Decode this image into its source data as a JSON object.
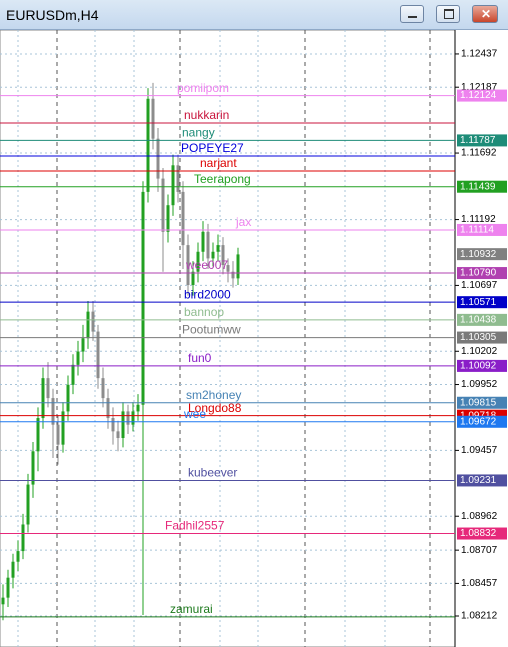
{
  "window": {
    "title": "EURUSDm,H4"
  },
  "chart_data": {
    "type": "candlestick",
    "ylim": [
      1.07979,
      1.12617
    ],
    "yticks": [
      1.12437,
      1.12187,
      1.11692,
      1.11192,
      1.10697,
      1.10202,
      1.09952,
      1.09457,
      1.08962,
      1.08707,
      1.08457,
      1.08212
    ],
    "grid": true,
    "up_color": "#22a022",
    "down_color": "#8c8c8c",
    "candles": [
      [
        1.083,
        1.0845,
        1.0818,
        1.0835
      ],
      [
        1.0835,
        1.0856,
        1.0828,
        1.085
      ],
      [
        1.085,
        1.0868,
        1.0842,
        1.0862
      ],
      [
        1.0862,
        1.0878,
        1.0855,
        1.087
      ],
      [
        1.087,
        1.0898,
        1.0864,
        1.089
      ],
      [
        1.089,
        1.0928,
        1.0884,
        1.092
      ],
      [
        1.092,
        1.0952,
        1.091,
        1.0945
      ],
      [
        1.0945,
        1.0978,
        1.093,
        1.097
      ],
      [
        1.097,
        1.1008,
        1.0962,
        1.1
      ],
      [
        1.1,
        1.1012,
        1.0978,
        1.0985
      ],
      [
        1.0985,
        1.0992,
        1.094,
        1.0965
      ],
      [
        1.0965,
        1.0972,
        1.0935,
        1.095
      ],
      [
        1.095,
        1.0982,
        1.0944,
        1.0975
      ],
      [
        1.0975,
        1.1002,
        1.0968,
        1.0995
      ],
      [
        1.0995,
        1.1018,
        1.0988,
        1.101
      ],
      [
        1.101,
        1.1028,
        1.1002,
        1.102
      ],
      [
        1.102,
        1.104,
        1.1012,
        1.103
      ],
      [
        1.103,
        1.1058,
        1.1022,
        1.105
      ],
      [
        1.105,
        1.1058,
        1.1028,
        1.1035
      ],
      [
        1.1035,
        1.104,
        1.0992,
        1.1
      ],
      [
        1.1,
        1.1008,
        1.0978,
        1.0985
      ],
      [
        1.0985,
        1.0992,
        1.0962,
        1.097
      ],
      [
        1.097,
        1.0978,
        1.095,
        1.096
      ],
      [
        1.096,
        1.0968,
        1.0945,
        1.0955
      ],
      [
        1.0955,
        1.0982,
        1.0948,
        1.0975
      ],
      [
        1.0975,
        1.098,
        1.0958,
        1.0965
      ],
      [
        1.0965,
        1.0982,
        1.096,
        1.0975
      ],
      [
        1.0975,
        1.0988,
        1.0968,
        1.098
      ],
      [
        1.098,
        1.1148,
        1.0822,
        1.114
      ],
      [
        1.114,
        1.1218,
        1.1132,
        1.121
      ],
      [
        1.121,
        1.1222,
        1.1172,
        1.118
      ],
      [
        1.118,
        1.1188,
        1.114,
        1.115
      ],
      [
        1.115,
        1.1158,
        1.108,
        1.111
      ],
      [
        1.111,
        1.1138,
        1.1102,
        1.113
      ],
      [
        1.113,
        1.1168,
        1.1122,
        1.116
      ],
      [
        1.116,
        1.1168,
        1.1132,
        1.114
      ],
      [
        1.114,
        1.1148,
        1.1082,
        1.11
      ],
      [
        1.11,
        1.1108,
        1.1062,
        1.107
      ],
      [
        1.107,
        1.1088,
        1.1062,
        1.108
      ],
      [
        1.108,
        1.1102,
        1.1072,
        1.1095
      ],
      [
        1.1095,
        1.1118,
        1.1088,
        1.111
      ],
      [
        1.111,
        1.1116,
        1.1082,
        1.109
      ],
      [
        1.109,
        1.1102,
        1.1084,
        1.1095
      ],
      [
        1.1095,
        1.1108,
        1.1088,
        1.11
      ],
      [
        1.11,
        1.1106,
        1.1078,
        1.1085
      ],
      [
        1.1085,
        1.109,
        1.1072,
        1.108
      ],
      [
        1.108,
        1.1088,
        1.1068,
        1.1075
      ],
      [
        1.1075,
        1.1098,
        1.107,
        1.1093
      ]
    ],
    "bid": 1.10932,
    "bid_color": "#808080",
    "levels": [
      {
        "name": "pomiipom",
        "value": 1.12124,
        "color": "#ee82ee",
        "label": "1.12124"
      },
      {
        "name": "nukkarin",
        "value": 1.11918,
        "color": "#c8143c"
      },
      {
        "name": "nangy",
        "value": 1.11787,
        "color": "#1e8c78",
        "label": "1.11787"
      },
      {
        "name": "POPEYE27",
        "value": 1.1167,
        "color": "#0000dc"
      },
      {
        "name": "narjant",
        "value": 1.11557,
        "color": "#dc0000"
      },
      {
        "name": "Teerapong",
        "value": 1.11439,
        "color": "#22a022",
        "label": "1.11439"
      },
      {
        "name": "jax",
        "value": 1.11114,
        "color": "#ee82ee",
        "label": "1.11114"
      },
      {
        "name": "wee007",
        "value": 1.1079,
        "color": "#b040b0",
        "label": "1.10790"
      },
      {
        "name": "bird2000",
        "value": 1.10571,
        "color": "#0000c8",
        "label": "1.10571"
      },
      {
        "name": "bannop",
        "value": 1.10438,
        "color": "#8fbc8f",
        "label": "1.10438"
      },
      {
        "name": "Pootumww",
        "value": 1.10305,
        "color": "#7a7a7a",
        "label": "1.10305"
      },
      {
        "name": "fun0",
        "value": 1.10092,
        "color": "#8a1ec8",
        "label": "1.10092"
      },
      {
        "name": "sm2honey",
        "value": 1.09815,
        "color": "#4682b4",
        "label": "1.09815"
      },
      {
        "name": "Longdo88",
        "value": 1.09718,
        "color": "#dc0000",
        "label": "1.09718"
      },
      {
        "name": "wee",
        "value": 1.09672,
        "color": "#1e78f0",
        "label": "1.09672"
      },
      {
        "name": "kubeever",
        "value": 1.09231,
        "color": "#5050a0",
        "label": "1.09231"
      },
      {
        "name": "Fadhil2557",
        "value": 1.08832,
        "color": "#e6287a",
        "label": "1.08832"
      },
      {
        "name": "zamurai",
        "value": 1.08205,
        "color": "#1e7a1e"
      }
    ]
  }
}
